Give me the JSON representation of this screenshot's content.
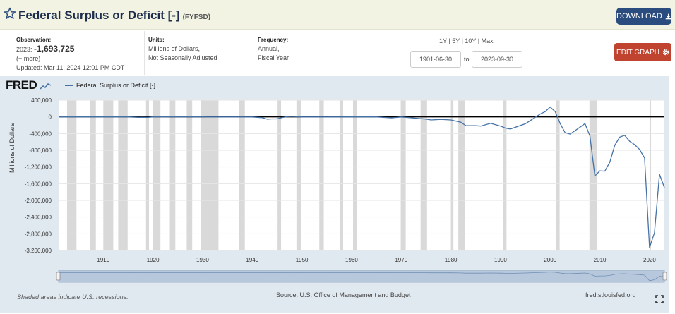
{
  "header": {
    "title": "Federal Surplus or Deficit [-]",
    "series_id": "(FYFSD)",
    "download_label": "DOWNLOAD"
  },
  "info": {
    "observation_label": "Observation:",
    "observation_year": "2023:",
    "observation_value": "-1,693,725",
    "more_label": "(+ more)",
    "updated": "Updated: Mar 11, 2024 12:01 PM CDT",
    "units_label": "Units:",
    "units_line1": "Millions of Dollars,",
    "units_line2": "Not Seasonally Adjusted",
    "frequency_label": "Frequency:",
    "frequency_line1": "Annual,",
    "frequency_line2": "Fiscal Year"
  },
  "range_buttons": [
    "1Y",
    "5Y",
    "10Y",
    "Max"
  ],
  "date_range": {
    "start": "1901-06-30",
    "to_label": "to",
    "end": "2023-09-30"
  },
  "edit_graph_label": "EDIT GRAPH",
  "chart": {
    "logo": "FRED",
    "legend_label": "Federal Surplus or Deficit [-]",
    "ylabel": "Millions of Dollars",
    "recession_note": "Shaded areas indicate U.S. recessions.",
    "source": "Source: U.S. Office of Management and Budget",
    "site": "fred.stlouisfed.org"
  },
  "colors": {
    "series": "#4572a7",
    "recession": "#d9d9d9",
    "plot_bg": "#ffffff",
    "frame_bg": "#e1e9f0",
    "download_btn": "#2b4c7e",
    "edit_btn": "#c0432f"
  },
  "chart_data": {
    "type": "line",
    "xlabel": "",
    "ylabel": "Millions of Dollars",
    "ylim": [
      -3200000,
      400000
    ],
    "xlim": [
      1901,
      2023
    ],
    "yticks": [
      400000,
      0,
      -400000,
      -800000,
      -1200000,
      -1600000,
      -2000000,
      -2400000,
      -2800000,
      -3200000
    ],
    "ytick_labels": [
      "400,000",
      "0",
      "-400,000",
      "-800,000",
      "-1,200,000",
      "-1,600,000",
      "-2,000,000",
      "-2,400,000",
      "-2,800,000",
      "-3,200,000"
    ],
    "xticks": [
      1910,
      1920,
      1930,
      1940,
      1950,
      1960,
      1970,
      1980,
      1990,
      2000,
      2010,
      2020
    ],
    "grid": true,
    "legend": "top-left",
    "series": [
      {
        "name": "Federal Surplus or Deficit [-]",
        "x": [
          1901,
          1910,
          1915,
          1917,
          1918,
          1919,
          1920,
          1925,
          1930,
          1931,
          1935,
          1940,
          1942,
          1943,
          1944,
          1945,
          1946,
          1947,
          1948,
          1950,
          1955,
          1960,
          1965,
          1968,
          1970,
          1972,
          1975,
          1976,
          1978,
          1980,
          1982,
          1983,
          1985,
          1986,
          1988,
          1990,
          1991,
          1992,
          1995,
          1998,
          1999,
          2000,
          2001,
          2002,
          2003,
          2004,
          2006,
          2007,
          2008,
          2009,
          2010,
          2011,
          2012,
          2013,
          2014,
          2015,
          2016,
          2017,
          2018,
          2019,
          2020,
          2021,
          2022,
          2023
        ],
        "y": [
          0,
          0,
          0,
          -10000,
          -9000,
          -13000,
          0,
          1000,
          1000,
          -2000,
          -3000,
          -3000,
          -20000,
          -55000,
          -48000,
          -48000,
          -16000,
          4000,
          12000,
          -3000,
          -3000,
          0,
          -1000,
          -25000,
          -3000,
          -23000,
          -53000,
          -74000,
          -59000,
          -74000,
          -128000,
          -208000,
          -212000,
          -221000,
          -155000,
          -221000,
          -269000,
          -290000,
          -164000,
          69000,
          126000,
          236000,
          128000,
          -158000,
          -378000,
          -413000,
          -248000,
          -161000,
          -459000,
          -1413000,
          -1294000,
          -1300000,
          -1087000,
          -680000,
          -485000,
          -442000,
          -585000,
          -665000,
          -779000,
          -984000,
          -3132000,
          -2775000,
          -1375000,
          -1693725
        ]
      }
    ],
    "recessions": [
      [
        1902.7,
        1904.6
      ],
      [
        1907.4,
        1908.5
      ],
      [
        1910.0,
        1912.0
      ],
      [
        1913.0,
        1914.9
      ],
      [
        1918.6,
        1919.2
      ],
      [
        1920.0,
        1921.5
      ],
      [
        1923.4,
        1924.5
      ],
      [
        1926.8,
        1927.9
      ],
      [
        1929.6,
        1933.2
      ],
      [
        1937.4,
        1938.5
      ],
      [
        1945.1,
        1945.8
      ],
      [
        1948.9,
        1949.8
      ],
      [
        1953.5,
        1954.4
      ],
      [
        1957.6,
        1958.3
      ],
      [
        1960.3,
        1961.1
      ],
      [
        1969.9,
        1970.9
      ],
      [
        1973.9,
        1975.2
      ],
      [
        1980.0,
        1980.5
      ],
      [
        1981.5,
        1982.9
      ],
      [
        1990.5,
        1991.2
      ],
      [
        2001.2,
        2001.9
      ],
      [
        2007.9,
        2009.5
      ],
      [
        2020.1,
        2020.3
      ]
    ]
  }
}
